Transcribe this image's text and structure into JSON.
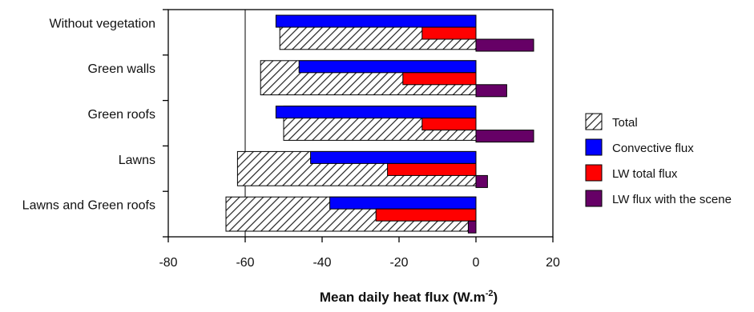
{
  "chart_data": {
    "type": "bar",
    "orientation": "horizontal",
    "categories": [
      "Without vegetation",
      "Green walls",
      "Green roofs",
      "Lawns",
      "Lawns and Green roofs"
    ],
    "series": [
      {
        "name": "Total",
        "values": [
          -51,
          -56,
          -50,
          -62,
          -65
        ],
        "color": "#ffffff",
        "pattern": "diagonal-hatch"
      },
      {
        "name": "Convective flux",
        "values": [
          -52,
          -46,
          -52,
          -43,
          -38
        ],
        "color": "#0000ff"
      },
      {
        "name": "LW total  flux",
        "values": [
          -14,
          -19,
          -14,
          -23,
          -26
        ],
        "color": "#ff0000"
      },
      {
        "name": "LW flux with the scene",
        "values": [
          15,
          8,
          15,
          3,
          -2
        ],
        "color": "#660066"
      }
    ],
    "xlim": [
      -80,
      20
    ],
    "x_ticks": [
      "-80",
      "-60",
      "-40",
      "-20",
      "0",
      "20"
    ],
    "xlabel_main": "Mean daily heat flux (W.m",
    "xlabel_sup": "-2",
    "xlabel_end": ")",
    "reference_line": -60,
    "legend_position": "right",
    "grid": false
  }
}
